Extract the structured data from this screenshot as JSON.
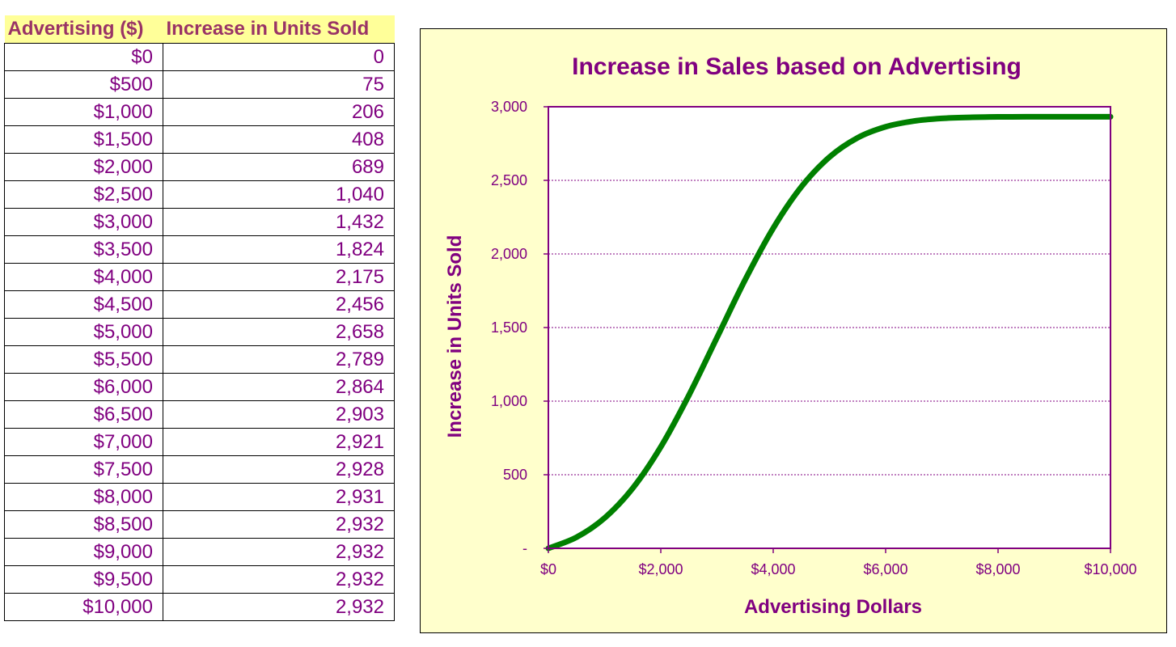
{
  "table": {
    "headers": [
      "Advertising ($)",
      "Increase in Units Sold"
    ],
    "rows": [
      [
        "$0",
        "0"
      ],
      [
        "$500",
        "75"
      ],
      [
        "$1,000",
        "206"
      ],
      [
        "$1,500",
        "408"
      ],
      [
        "$2,000",
        "689"
      ],
      [
        "$2,500",
        "1,040"
      ],
      [
        "$3,000",
        "1,432"
      ],
      [
        "$3,500",
        "1,824"
      ],
      [
        "$4,000",
        "2,175"
      ],
      [
        "$4,500",
        "2,456"
      ],
      [
        "$5,000",
        "2,658"
      ],
      [
        "$5,500",
        "2,789"
      ],
      [
        "$6,000",
        "2,864"
      ],
      [
        "$6,500",
        "2,903"
      ],
      [
        "$7,000",
        "2,921"
      ],
      [
        "$7,500",
        "2,928"
      ],
      [
        "$8,000",
        "2,931"
      ],
      [
        "$8,500",
        "2,932"
      ],
      [
        "$9,000",
        "2,932"
      ],
      [
        "$9,500",
        "2,932"
      ],
      [
        "$10,000",
        "2,932"
      ]
    ]
  },
  "chart_data": {
    "type": "line",
    "title": "Increase in Sales based on Advertising",
    "xlabel": "Advertising Dollars",
    "ylabel": "Increase in Units Sold",
    "xlim": [
      0,
      10000
    ],
    "ylim": [
      0,
      3000
    ],
    "x_ticks": [
      0,
      2000,
      4000,
      6000,
      8000,
      10000
    ],
    "x_tick_labels": [
      "$0",
      "$2,000",
      "$4,000",
      "$6,000",
      "$8,000",
      "$10,000"
    ],
    "y_ticks": [
      0,
      500,
      1000,
      1500,
      2000,
      2500,
      3000
    ],
    "y_tick_labels": [
      "-",
      "500",
      "1,000",
      "1,500",
      "2,000",
      "2,500",
      "3,000"
    ],
    "grid": "horizontal dashed",
    "x": [
      0,
      500,
      1000,
      1500,
      2000,
      2500,
      3000,
      3500,
      4000,
      4500,
      5000,
      5500,
      6000,
      6500,
      7000,
      7500,
      8000,
      8500,
      9000,
      9500,
      10000
    ],
    "series": [
      {
        "values": [
          0,
          75,
          206,
          408,
          689,
          1040,
          1432,
          1824,
          2175,
          2456,
          2658,
          2789,
          2864,
          2903,
          2921,
          2928,
          2931,
          2932,
          2932,
          2932,
          2932
        ]
      }
    ],
    "colors": {
      "line": "#008000",
      "text": "#800080",
      "plot_bg": "#ffffff",
      "panel_bg": "#ffffcc",
      "header_bg": "#ffff99",
      "header_text": "#993366"
    }
  }
}
